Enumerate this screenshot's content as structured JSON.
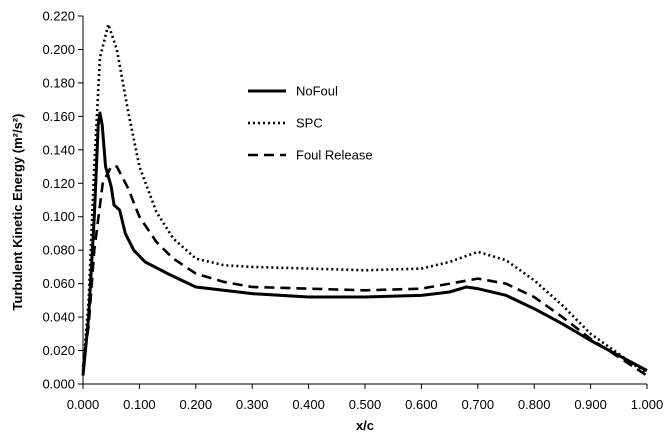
{
  "chart_data": {
    "type": "line",
    "title": "",
    "xlabel": "x/c",
    "ylabel": "Turbulent Kinetic Energy (m²/s²)",
    "xlim": [
      0,
      1
    ],
    "ylim": [
      0,
      0.22
    ],
    "x_ticks": [
      "0.000",
      "0.100",
      "0.200",
      "0.300",
      "0.400",
      "0.500",
      "0.600",
      "0.700",
      "0.800",
      "0.900",
      "1.000"
    ],
    "y_ticks": [
      "0.000",
      "0.020",
      "0.040",
      "0.060",
      "0.080",
      "0.100",
      "0.120",
      "0.140",
      "0.160",
      "0.180",
      "0.200",
      "0.220"
    ],
    "grid": false,
    "legend_position": "upper-center",
    "series": [
      {
        "name": "NoFoul",
        "style": "solid",
        "color": "#000000",
        "points": [
          [
            0.0,
            0.005
          ],
          [
            0.01,
            0.04
          ],
          [
            0.02,
            0.1
          ],
          [
            0.027,
            0.155
          ],
          [
            0.03,
            0.162
          ],
          [
            0.034,
            0.155
          ],
          [
            0.04,
            0.13
          ],
          [
            0.05,
            0.118
          ],
          [
            0.055,
            0.107
          ],
          [
            0.065,
            0.104
          ],
          [
            0.075,
            0.09
          ],
          [
            0.09,
            0.08
          ],
          [
            0.11,
            0.073
          ],
          [
            0.15,
            0.066
          ],
          [
            0.2,
            0.058
          ],
          [
            0.3,
            0.054
          ],
          [
            0.4,
            0.052
          ],
          [
            0.5,
            0.052
          ],
          [
            0.6,
            0.053
          ],
          [
            0.65,
            0.055
          ],
          [
            0.68,
            0.058
          ],
          [
            0.7,
            0.057
          ],
          [
            0.75,
            0.053
          ],
          [
            0.8,
            0.045
          ],
          [
            0.85,
            0.036
          ],
          [
            0.9,
            0.026
          ],
          [
            0.95,
            0.017
          ],
          [
            1.0,
            0.008
          ]
        ]
      },
      {
        "name": "SPC",
        "style": "dotted",
        "color": "#000000",
        "points": [
          [
            0.0,
            0.008
          ],
          [
            0.01,
            0.05
          ],
          [
            0.02,
            0.13
          ],
          [
            0.03,
            0.195
          ],
          [
            0.045,
            0.215
          ],
          [
            0.06,
            0.2
          ],
          [
            0.08,
            0.163
          ],
          [
            0.1,
            0.13
          ],
          [
            0.13,
            0.103
          ],
          [
            0.16,
            0.087
          ],
          [
            0.2,
            0.075
          ],
          [
            0.25,
            0.071
          ],
          [
            0.3,
            0.07
          ],
          [
            0.4,
            0.069
          ],
          [
            0.5,
            0.068
          ],
          [
            0.6,
            0.069
          ],
          [
            0.65,
            0.073
          ],
          [
            0.7,
            0.079
          ],
          [
            0.75,
            0.074
          ],
          [
            0.8,
            0.062
          ],
          [
            0.85,
            0.047
          ],
          [
            0.9,
            0.03
          ],
          [
            0.95,
            0.018
          ],
          [
            1.0,
            0.006
          ]
        ]
      },
      {
        "name": "Foul Release",
        "style": "dashed",
        "color": "#000000",
        "points": [
          [
            0.0,
            0.01
          ],
          [
            0.01,
            0.035
          ],
          [
            0.02,
            0.08
          ],
          [
            0.035,
            0.12
          ],
          [
            0.05,
            0.13
          ],
          [
            0.06,
            0.13
          ],
          [
            0.08,
            0.117
          ],
          [
            0.1,
            0.1
          ],
          [
            0.13,
            0.085
          ],
          [
            0.16,
            0.075
          ],
          [
            0.2,
            0.066
          ],
          [
            0.25,
            0.061
          ],
          [
            0.3,
            0.058
          ],
          [
            0.4,
            0.057
          ],
          [
            0.5,
            0.056
          ],
          [
            0.6,
            0.057
          ],
          [
            0.65,
            0.06
          ],
          [
            0.7,
            0.063
          ],
          [
            0.75,
            0.06
          ],
          [
            0.8,
            0.052
          ],
          [
            0.85,
            0.04
          ],
          [
            0.9,
            0.027
          ],
          [
            0.95,
            0.016
          ],
          [
            1.0,
            0.005
          ]
        ]
      }
    ]
  }
}
